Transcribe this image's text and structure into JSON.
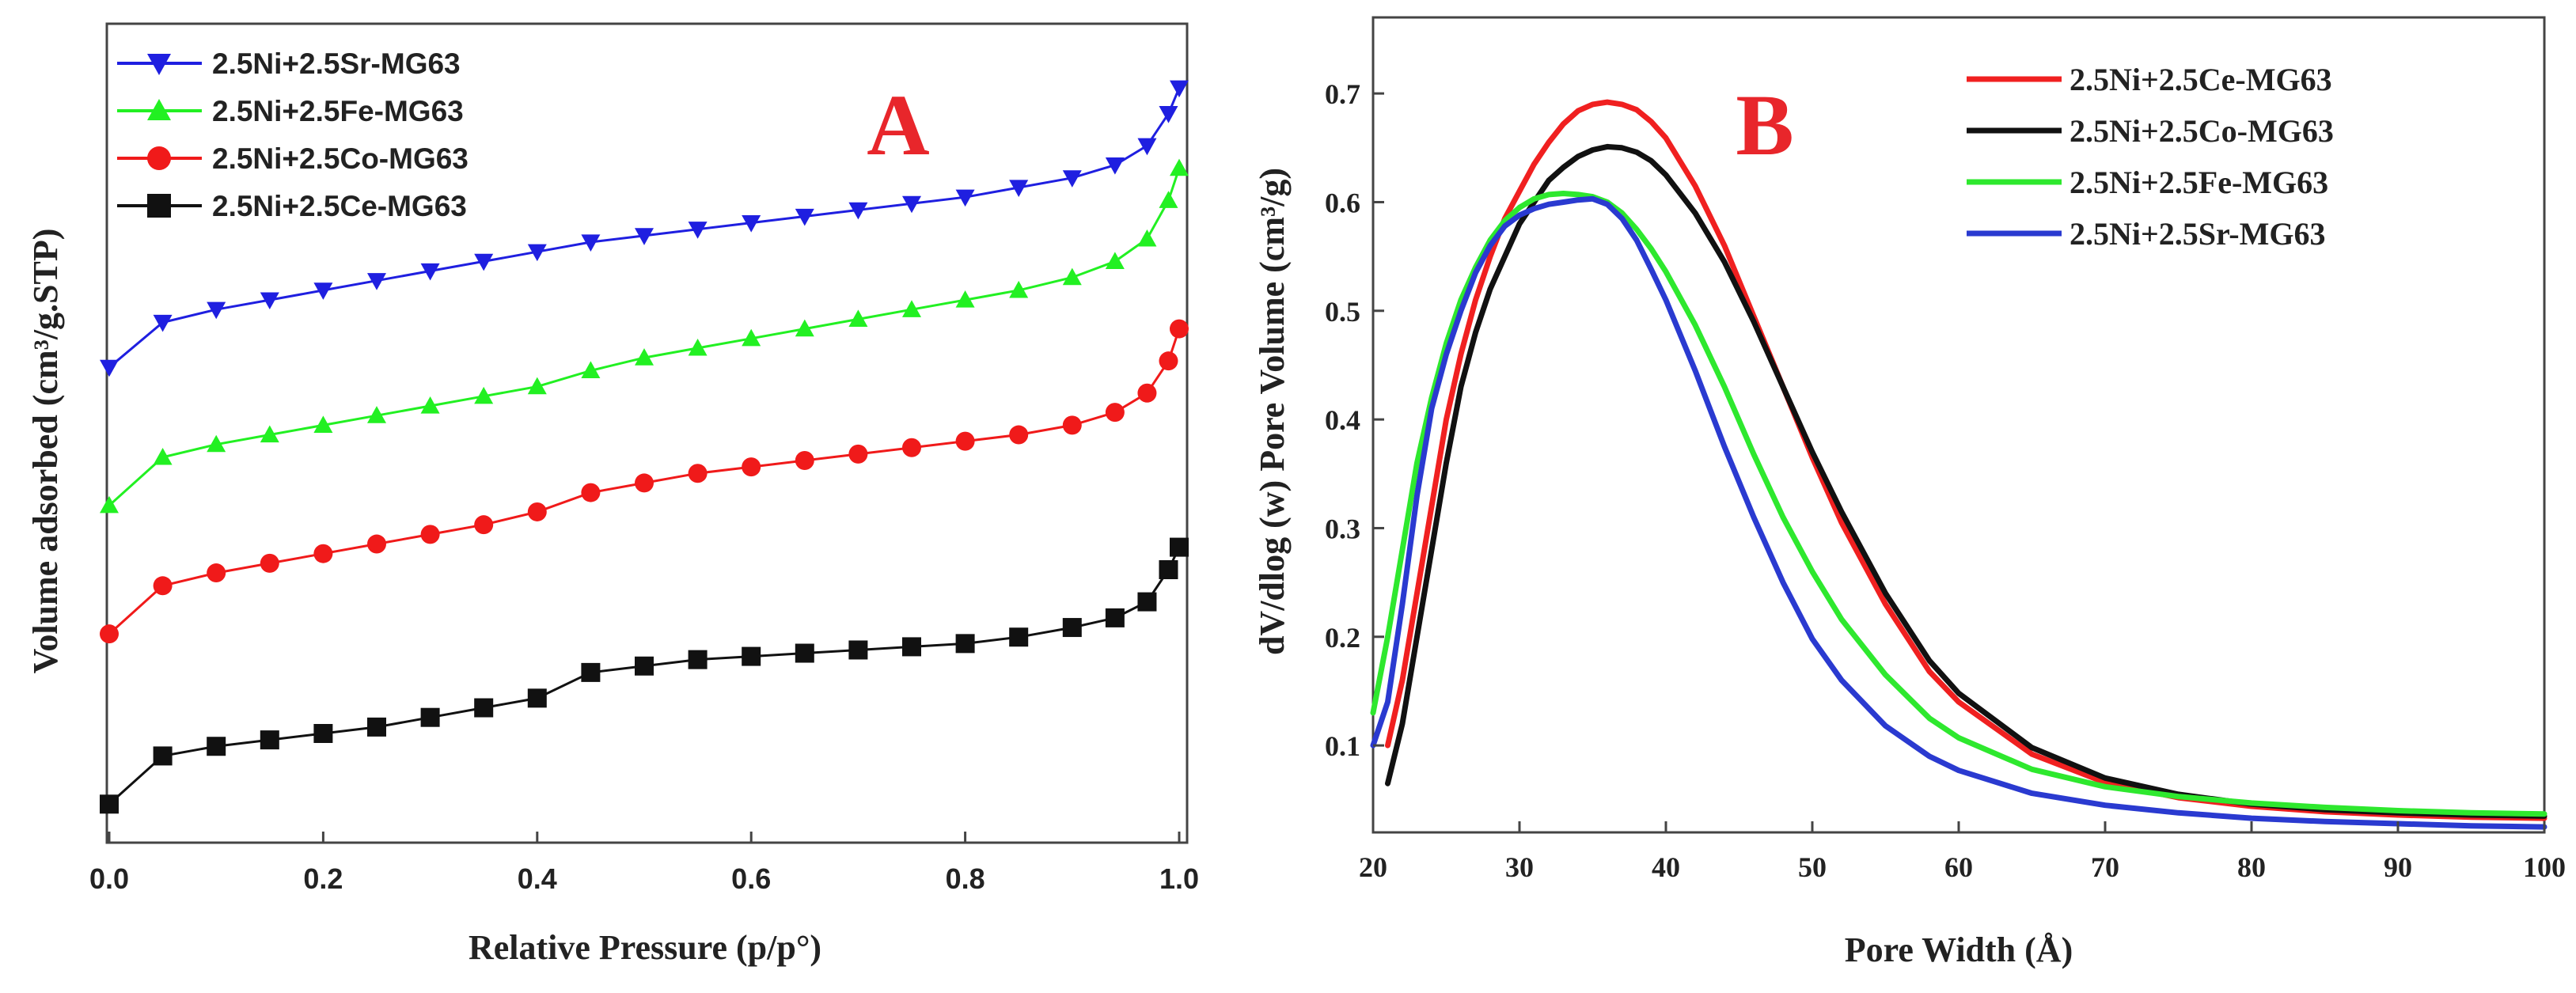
{
  "chart_data": [
    {
      "type": "line",
      "panel_label": "A",
      "xlabel": "Relative Pressure (p/p°)",
      "ylabel": "Volume adsorbed (cm³/g.STP)",
      "xlim": [
        0.0,
        1.0
      ],
      "x_ticks": [
        "0.0",
        "0.2",
        "0.4",
        "0.6",
        "0.8",
        "1.0"
      ],
      "y_ticks_shown": false,
      "legend_position": "top-left",
      "x": [
        0.0,
        0.05,
        0.1,
        0.15,
        0.2,
        0.25,
        0.3,
        0.35,
        0.4,
        0.45,
        0.5,
        0.55,
        0.6,
        0.65,
        0.7,
        0.75,
        0.8,
        0.85,
        0.9,
        0.94,
        0.97,
        0.99,
        1.0
      ],
      "series": [
        {
          "name": "2.5Ni+2.5Sr-MG63",
          "color": "#1f1fe0",
          "marker": "triangle-down",
          "values": [
            0.48,
            0.62,
            0.66,
            0.69,
            0.72,
            0.75,
            0.78,
            0.81,
            0.84,
            0.87,
            0.89,
            0.91,
            0.93,
            0.95,
            0.97,
            0.99,
            1.01,
            1.04,
            1.07,
            1.11,
            1.17,
            1.27,
            1.35
          ]
        },
        {
          "name": "2.5Ni+2.5Fe-MG63",
          "color": "#22f022",
          "marker": "triangle-up",
          "values": [
            0.05,
            0.2,
            0.24,
            0.27,
            0.3,
            0.33,
            0.36,
            0.39,
            0.42,
            0.47,
            0.51,
            0.54,
            0.57,
            0.6,
            0.63,
            0.66,
            0.69,
            0.72,
            0.76,
            0.81,
            0.88,
            1.0,
            1.1
          ]
        },
        {
          "name": "2.5Ni+2.5Co-MG63",
          "color": "#f01a1a",
          "marker": "circle",
          "values": [
            -0.35,
            -0.2,
            -0.16,
            -0.13,
            -0.1,
            -0.07,
            -0.04,
            -0.01,
            0.03,
            0.09,
            0.12,
            0.15,
            0.17,
            0.19,
            0.21,
            0.23,
            0.25,
            0.27,
            0.3,
            0.34,
            0.4,
            0.5,
            0.6
          ]
        },
        {
          "name": "2.5Ni+2.5Ce-MG63",
          "color": "#111111",
          "marker": "square",
          "values": [
            -0.88,
            -0.73,
            -0.7,
            -0.68,
            -0.66,
            -0.64,
            -0.61,
            -0.58,
            -0.55,
            -0.47,
            -0.45,
            -0.43,
            -0.42,
            -0.41,
            -0.4,
            -0.39,
            -0.38,
            -0.36,
            -0.33,
            -0.3,
            -0.25,
            -0.15,
            -0.08
          ]
        }
      ]
    },
    {
      "type": "line",
      "panel_label": "B",
      "xlabel": "Pore Width (Å)",
      "ylabel": "dV/dlog (w) Pore Volume (cm³/g)",
      "xlim": [
        20,
        100
      ],
      "ylim": [
        0.02,
        0.77
      ],
      "x_ticks": [
        "20",
        "30",
        "40",
        "50",
        "60",
        "70",
        "80",
        "90",
        "100"
      ],
      "y_ticks": [
        "0.1",
        "0.2",
        "0.3",
        "0.4",
        "0.5",
        "0.6",
        "0.7"
      ],
      "legend_position": "top-right",
      "x": [
        20,
        21,
        22,
        23,
        24,
        25,
        26,
        27,
        28,
        29,
        30,
        31,
        32,
        33,
        34,
        35,
        36,
        37,
        38,
        39,
        40,
        42,
        44,
        46,
        48,
        50,
        52,
        55,
        58,
        60,
        65,
        70,
        75,
        80,
        85,
        90,
        95,
        100
      ],
      "series": [
        {
          "name": "2.5Ni+2.5Ce-MG63",
          "color": "#f02020",
          "values": [
            null,
            0.1,
            0.16,
            0.24,
            0.32,
            0.4,
            0.46,
            0.51,
            0.55,
            0.585,
            0.61,
            0.635,
            0.655,
            0.672,
            0.684,
            0.69,
            0.692,
            0.69,
            0.685,
            0.674,
            0.659,
            0.615,
            0.56,
            0.495,
            0.43,
            0.365,
            0.305,
            0.23,
            0.168,
            0.14,
            0.092,
            0.066,
            0.052,
            0.044,
            0.039,
            0.036,
            0.034,
            0.033
          ]
        },
        {
          "name": "2.5Ni+2.5Co-MG63",
          "color": "#111111",
          "values": [
            null,
            0.065,
            0.12,
            0.2,
            0.28,
            0.36,
            0.43,
            0.48,
            0.52,
            0.55,
            0.58,
            0.6,
            0.62,
            0.632,
            0.642,
            0.648,
            0.651,
            0.65,
            0.646,
            0.638,
            0.625,
            0.59,
            0.545,
            0.49,
            0.43,
            0.37,
            0.315,
            0.24,
            0.178,
            0.148,
            0.098,
            0.07,
            0.055,
            0.046,
            0.041,
            0.038,
            0.036,
            0.035
          ]
        },
        {
          "name": "2.5Ni+2.5Fe-MG63",
          "color": "#2ee82e",
          "values": [
            0.13,
            0.2,
            0.28,
            0.36,
            0.42,
            0.47,
            0.51,
            0.54,
            0.565,
            0.583,
            0.595,
            0.603,
            0.607,
            0.608,
            0.607,
            0.605,
            0.6,
            0.59,
            0.575,
            0.557,
            0.536,
            0.487,
            0.43,
            0.368,
            0.31,
            0.26,
            0.216,
            0.165,
            0.125,
            0.107,
            0.078,
            0.062,
            0.053,
            0.047,
            0.043,
            0.04,
            0.038,
            0.037
          ]
        },
        {
          "name": "2.5Ni+2.5Sr-MG63",
          "color": "#2a3ad0",
          "values": [
            0.1,
            0.14,
            0.23,
            0.33,
            0.41,
            0.46,
            0.5,
            0.535,
            0.56,
            0.578,
            0.588,
            0.594,
            0.598,
            0.6,
            0.602,
            0.603,
            0.598,
            0.585,
            0.565,
            0.538,
            0.51,
            0.445,
            0.375,
            0.31,
            0.25,
            0.198,
            0.16,
            0.118,
            0.09,
            0.077,
            0.056,
            0.045,
            0.038,
            0.033,
            0.03,
            0.028,
            0.026,
            0.025
          ]
        }
      ]
    }
  ]
}
